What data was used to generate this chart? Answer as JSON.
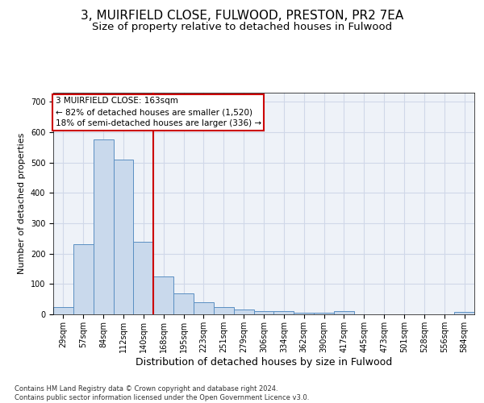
{
  "title_line1": "3, MUIRFIELD CLOSE, FULWOOD, PRESTON, PR2 7EA",
  "title_line2": "Size of property relative to detached houses in Fulwood",
  "xlabel": "Distribution of detached houses by size in Fulwood",
  "ylabel": "Number of detached properties",
  "footnote": "Contains HM Land Registry data © Crown copyright and database right 2024.\nContains public sector information licensed under the Open Government Licence v3.0.",
  "bin_labels": [
    "29sqm",
    "57sqm",
    "84sqm",
    "112sqm",
    "140sqm",
    "168sqm",
    "195sqm",
    "223sqm",
    "251sqm",
    "279sqm",
    "306sqm",
    "334sqm",
    "362sqm",
    "390sqm",
    "417sqm",
    "445sqm",
    "473sqm",
    "501sqm",
    "528sqm",
    "556sqm",
    "584sqm"
  ],
  "bar_values": [
    25,
    230,
    575,
    510,
    240,
    125,
    70,
    40,
    25,
    15,
    10,
    10,
    5,
    5,
    10,
    0,
    0,
    0,
    0,
    0,
    7
  ],
  "bar_color": "#c9d9ec",
  "bar_edge_color": "#5a8fc2",
  "vline_color": "#cc0000",
  "annotation_box_text": "3 MUIRFIELD CLOSE: 163sqm\n← 82% of detached houses are smaller (1,520)\n18% of semi-detached houses are larger (336) →",
  "annotation_box_color": "#cc0000",
  "ylim": [
    0,
    730
  ],
  "yticks": [
    0,
    100,
    200,
    300,
    400,
    500,
    600,
    700
  ],
  "grid_color": "#d0d8e8",
  "background_color": "#eef2f8",
  "title1_fontsize": 11,
  "title2_fontsize": 9.5,
  "xlabel_fontsize": 9,
  "ylabel_fontsize": 8,
  "annotation_fontsize": 7.5,
  "tick_fontsize": 7
}
